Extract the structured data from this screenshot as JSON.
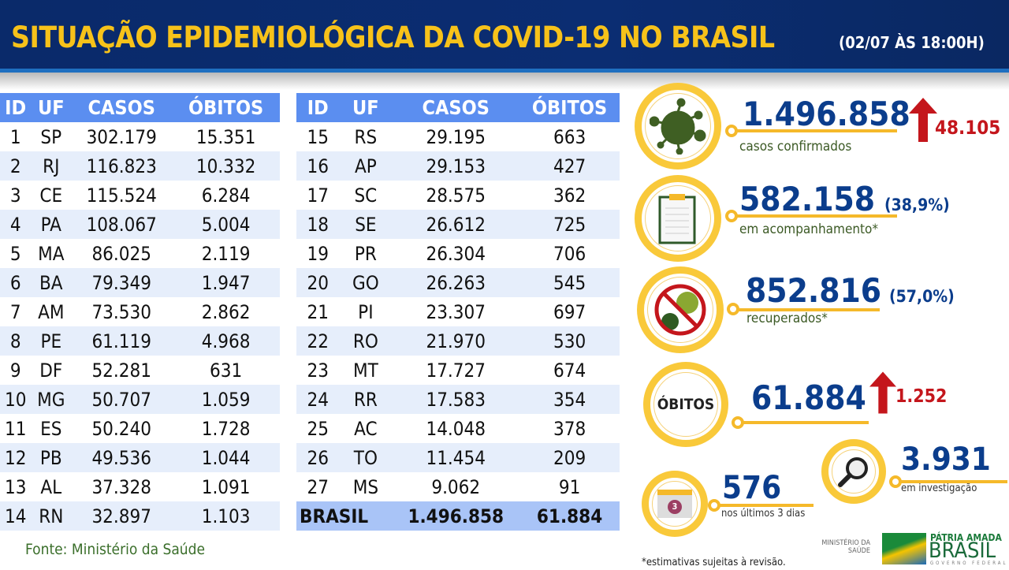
{
  "header": {
    "title": "SITUAÇÃO EPIDEMIOLÓGICA DA COVID-19 NO BRASIL",
    "date": "(02/07 ÀS 18:00H)"
  },
  "table": {
    "columns": [
      "ID",
      "UF",
      "CASOS",
      "ÓBITOS"
    ],
    "left": [
      [
        "1",
        "SP",
        "302.179",
        "15.351"
      ],
      [
        "2",
        "RJ",
        "116.823",
        "10.332"
      ],
      [
        "3",
        "CE",
        "115.524",
        "6.284"
      ],
      [
        "4",
        "PA",
        "108.067",
        "5.004"
      ],
      [
        "5",
        "MA",
        "86.025",
        "2.119"
      ],
      [
        "6",
        "BA",
        "79.349",
        "1.947"
      ],
      [
        "7",
        "AM",
        "73.530",
        "2.862"
      ],
      [
        "8",
        "PE",
        "61.119",
        "4.968"
      ],
      [
        "9",
        "DF",
        "52.281",
        "631"
      ],
      [
        "10",
        "MG",
        "50.707",
        "1.059"
      ],
      [
        "11",
        "ES",
        "50.240",
        "1.728"
      ],
      [
        "12",
        "PB",
        "49.536",
        "1.044"
      ],
      [
        "13",
        "AL",
        "37.328",
        "1.091"
      ],
      [
        "14",
        "RN",
        "32.897",
        "1.103"
      ]
    ],
    "right": [
      [
        "15",
        "RS",
        "29.195",
        "663"
      ],
      [
        "16",
        "AP",
        "29.153",
        "427"
      ],
      [
        "17",
        "SC",
        "28.575",
        "362"
      ],
      [
        "18",
        "SE",
        "26.612",
        "725"
      ],
      [
        "19",
        "PR",
        "26.304",
        "706"
      ],
      [
        "20",
        "GO",
        "26.263",
        "545"
      ],
      [
        "21",
        "PI",
        "23.307",
        "697"
      ],
      [
        "22",
        "RO",
        "21.970",
        "530"
      ],
      [
        "23",
        "MT",
        "17.727",
        "674"
      ],
      [
        "24",
        "RR",
        "17.583",
        "354"
      ],
      [
        "25",
        "AC",
        "14.048",
        "378"
      ],
      [
        "26",
        "TO",
        "11.454",
        "209"
      ],
      [
        "27",
        "MS",
        "9.062",
        "91"
      ]
    ],
    "total": {
      "label": "BRASIL",
      "casos": "1.496.858",
      "obitos": "61.884"
    }
  },
  "source": "Fonte: Ministério da Saúde",
  "stats": {
    "confirmed": {
      "value": "1.496.858",
      "label": "casos confirmados",
      "increase": "48.105",
      "icon": "virus-icon"
    },
    "monitoring": {
      "value": "582.158",
      "pct": "(38,9%)",
      "label": "em acompanhamento*",
      "icon": "clipboard-icon"
    },
    "recovered": {
      "value": "852.816",
      "pct": "(57,0%)",
      "label": "recuperados*",
      "icon": "no-virus-icon"
    },
    "deaths": {
      "circle_label": "ÓBITOS",
      "value": "61.884",
      "increase": "1.252"
    },
    "investigation": {
      "value": "3.931",
      "label": "em investigação",
      "icon": "magnifier-icon"
    },
    "last3": {
      "value": "576",
      "label": "nos últimos 3 dias",
      "calendar_day": "3",
      "icon": "calendar-icon"
    }
  },
  "footnote": "*estimativas sujeitas à revisão.",
  "logos": {
    "ministry": "MINISTÉRIO DA SAÚDE",
    "gov_line1": "PÁTRIA AMADA",
    "gov_line2": "BRASIL",
    "gov_line3": "GOVERNO FEDERAL"
  },
  "colors": {
    "title": "#f7c21a",
    "banner": "#0a2a6a",
    "header_row": "#5b8ef0",
    "number": "#0b3d8c",
    "increase": "#c4161c",
    "ring": "#f9c93a"
  }
}
